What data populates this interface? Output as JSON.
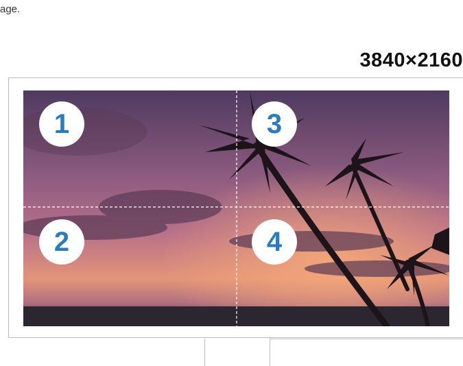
{
  "page": {
    "intro_fragment": "age.",
    "resolution": "3840×2160"
  },
  "quadrants": [
    {
      "label": "1"
    },
    {
      "label": "2"
    },
    {
      "label": "3"
    },
    {
      "label": "4"
    }
  ]
}
